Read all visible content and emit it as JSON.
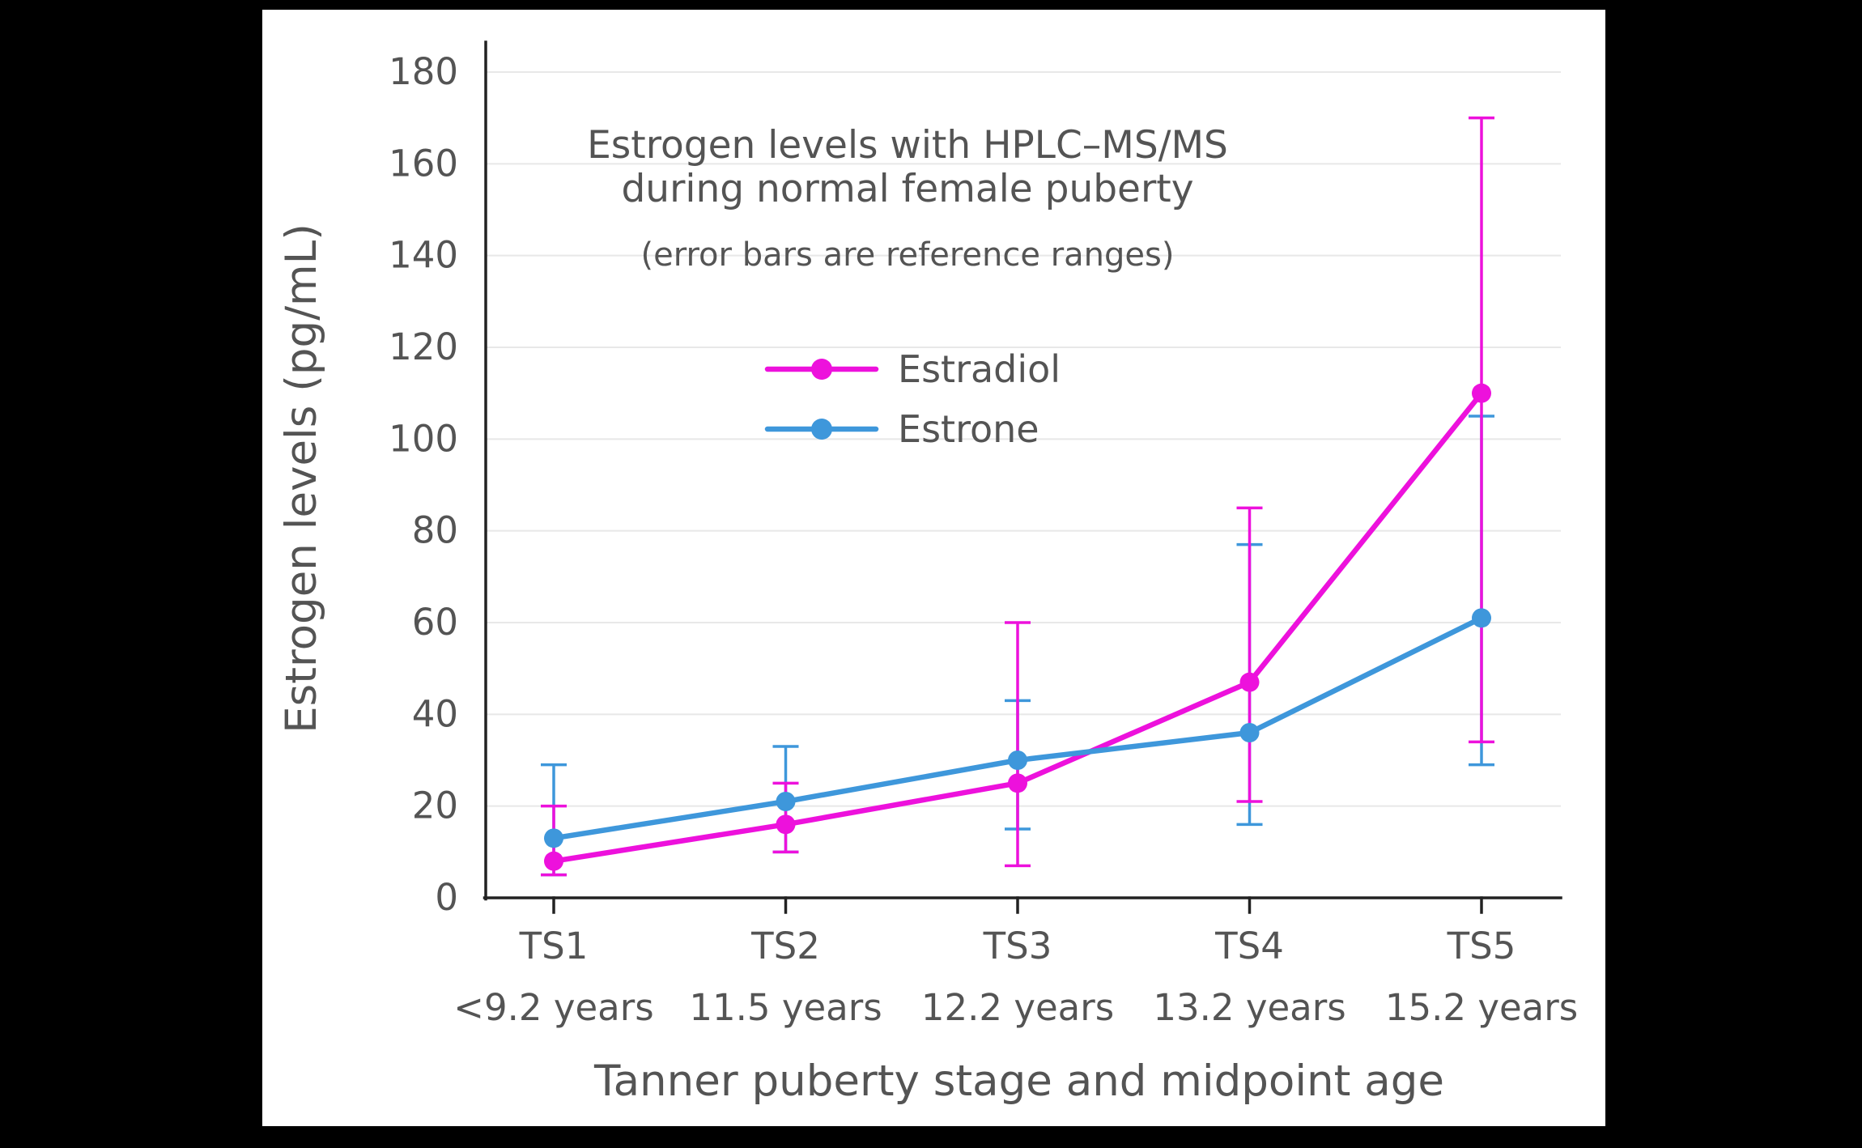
{
  "frame": {
    "background": "#000000",
    "panel_background": "#ffffff",
    "text_color": "#545454",
    "grid_color": "#e8e8e8",
    "axis_color": "#222222"
  },
  "chart_data": {
    "type": "line",
    "title": "Estrogen levels with HPLC–MS/MS during normal female puberty",
    "title_lines": [
      "Estrogen levels with HPLC–MS/MS",
      "during normal female puberty"
    ],
    "subtitle": "(error bars are reference ranges)",
    "xlabel": "Tanner puberty stage and midpoint age",
    "ylabel": "Estrogen levels (pg/mL)",
    "categories": [
      "TS1",
      "TS2",
      "TS3",
      "TS4",
      "TS5"
    ],
    "category_sublabels": [
      "<9.2 years",
      "11.5 years",
      "12.2 years",
      "13.2 years",
      "15.2 years"
    ],
    "yticks": [
      0,
      20,
      40,
      60,
      80,
      100,
      120,
      140,
      160,
      180
    ],
    "ylim": [
      0,
      187
    ],
    "grid": "horizontal",
    "legend_position": "upper-left-inside",
    "error_bars_meaning": "reference ranges",
    "series": [
      {
        "name": "Estradiol",
        "color": "#ED11DC",
        "values": [
          8,
          16,
          25,
          47,
          110
        ],
        "err_low": [
          5,
          10,
          7,
          21,
          34
        ],
        "err_high": [
          20,
          25,
          60,
          85,
          170
        ]
      },
      {
        "name": "Estrone",
        "color": "#3E97DB",
        "values": [
          13,
          21,
          30,
          36,
          61
        ],
        "err_low": [
          5,
          10,
          15,
          16,
          29
        ],
        "err_high": [
          29,
          33,
          43,
          77,
          105
        ]
      }
    ]
  }
}
